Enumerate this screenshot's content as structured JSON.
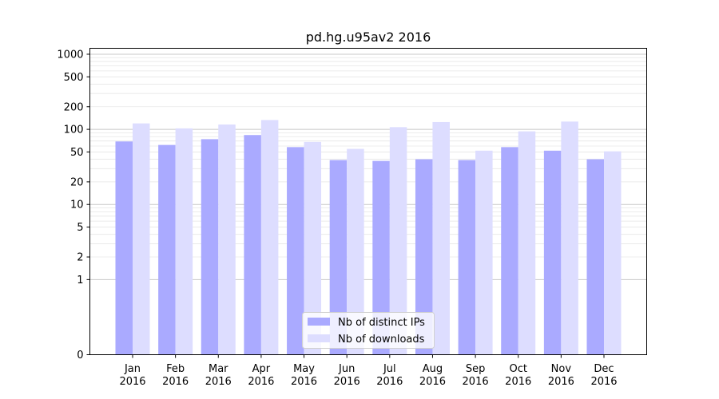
{
  "chart_data": {
    "type": "bar",
    "title": "pd.hg.u95av2 2016",
    "xlabel": "",
    "ylabel": "",
    "yscale": "symlog",
    "ylim": [
      0,
      1200
    ],
    "yticks": [
      0,
      1,
      2,
      5,
      10,
      20,
      50,
      100,
      200,
      500,
      1000
    ],
    "ytick_labels": [
      "0",
      "1",
      "2",
      "5",
      "10",
      "20",
      "50",
      "100",
      "200",
      "500",
      "1000"
    ],
    "grid": true,
    "legend_position": "bottom-center",
    "categories": [
      [
        "Jan",
        "2016"
      ],
      [
        "Feb",
        "2016"
      ],
      [
        "Mar",
        "2016"
      ],
      [
        "Apr",
        "2016"
      ],
      [
        "May",
        "2016"
      ],
      [
        "Jun",
        "2016"
      ],
      [
        "Jul",
        "2016"
      ],
      [
        "Aug",
        "2016"
      ],
      [
        "Sep",
        "2016"
      ],
      [
        "Oct",
        "2016"
      ],
      [
        "Nov",
        "2016"
      ],
      [
        "Dec",
        "2016"
      ]
    ],
    "series": [
      {
        "name": "Nb of distinct IPs",
        "color": "#aaaaff",
        "values": [
          69,
          62,
          74,
          84,
          58,
          39,
          38,
          40,
          39,
          58,
          52,
          40
        ]
      },
      {
        "name": "Nb of downloads",
        "color": "#ddddff",
        "values": [
          120,
          103,
          116,
          133,
          68,
          55,
          107,
          125,
          52,
          94,
          127,
          51
        ]
      }
    ]
  }
}
